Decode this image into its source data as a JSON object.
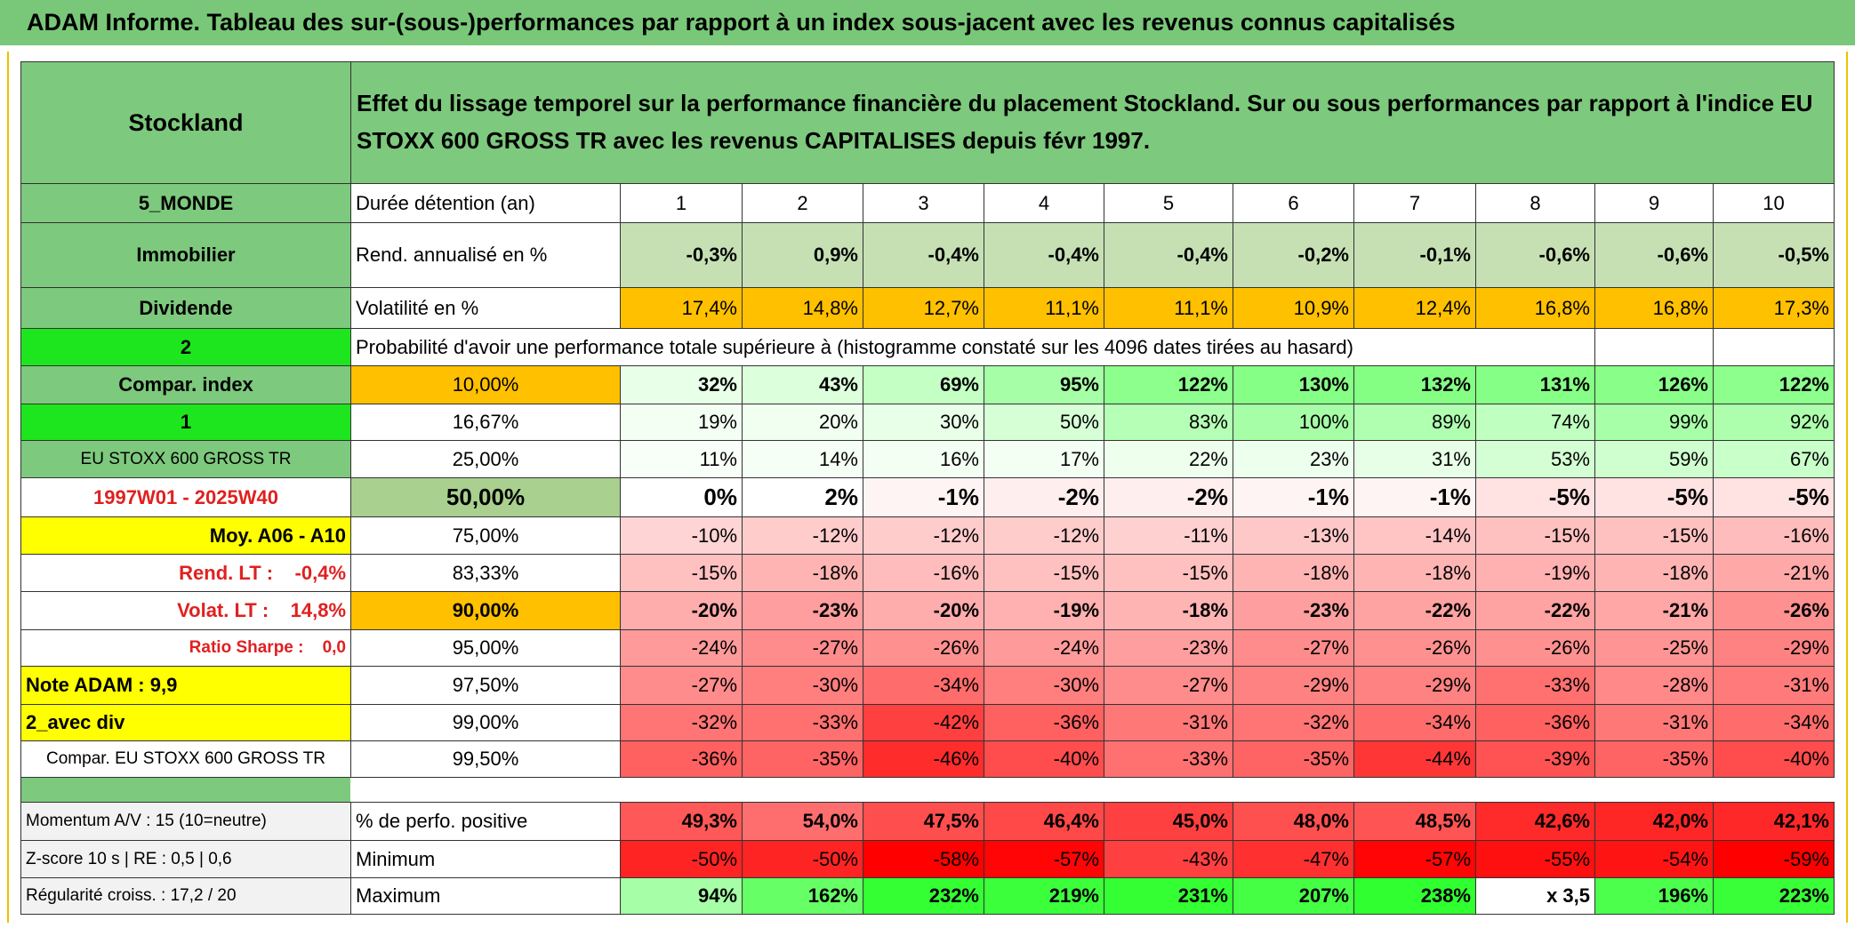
{
  "title": "ADAM Informe. Tableau des sur-(sous-)performances par rapport à un index sous-jacent avec les revenus connus capitalisés",
  "header": {
    "left": "Stockland",
    "text": "Effet du lissage temporel sur la performance financière du placement Stockland. Sur ou sous performances par rapport à l'indice EU STOXX 600 GROSS TR avec les revenus CAPITALISES depuis févr 1997."
  },
  "rows": [
    {
      "label": "5_MONDE",
      "label_bg": "#7dc97d",
      "label_color": "#000000",
      "label_align": "center",
      "label_bold": true,
      "name": "Durée détention (an)",
      "name_bg": "#ffffff",
      "name_align": "left",
      "name_bold": false,
      "cells": [
        "1",
        "2",
        "3",
        "4",
        "5",
        "6",
        "7",
        "8",
        "9",
        "10"
      ],
      "align": "center",
      "bold": false,
      "colors": [
        "#ffffff",
        "#ffffff",
        "#ffffff",
        "#ffffff",
        "#ffffff",
        "#ffffff",
        "#ffffff",
        "#ffffff",
        "#ffffff",
        "#ffffff"
      ]
    },
    {
      "label": "Immobilier",
      "label_bg": "#7dc97d",
      "label_color": "#000000",
      "label_align": "center",
      "label_bold": true,
      "name": "Rend. annualisé en %",
      "name_bg": "#ffffff",
      "name_align": "left",
      "name_bold": false,
      "cells": [
        "-0,3%",
        "0,9%",
        "-0,4%",
        "-0,4%",
        "-0,4%",
        "-0,2%",
        "-0,1%",
        "-0,6%",
        "-0,6%",
        "-0,5%"
      ],
      "align": "right",
      "bold": true,
      "colors": [
        "#c6e0b4",
        "#c6e0b4",
        "#c6e0b4",
        "#c6e0b4",
        "#c6e0b4",
        "#c6e0b4",
        "#c6e0b4",
        "#c6e0b4",
        "#c6e0b4",
        "#c6e0b4"
      ]
    },
    {
      "label": "Dividende",
      "label_bg": "#7dc97d",
      "label_color": "#000000",
      "label_align": "center",
      "label_bold": true,
      "name": "Volatilité en %",
      "name_bg": "#ffffff",
      "name_align": "left",
      "name_bold": false,
      "cells": [
        "17,4%",
        "14,8%",
        "12,7%",
        "11,1%",
        "11,1%",
        "10,9%",
        "12,4%",
        "16,8%",
        "16,8%",
        "17,3%"
      ],
      "align": "right",
      "bold": false,
      "colors": [
        "#ffc000",
        "#ffc000",
        "#ffc000",
        "#ffc000",
        "#ffc000",
        "#ffc000",
        "#ffc000",
        "#ffc000",
        "#ffc000",
        "#ffc000"
      ]
    },
    {
      "label": "2",
      "label_bg": "#1ee61e",
      "label_color": "#000000",
      "label_align": "center",
      "label_bold": true,
      "name": "Probabilité d'avoir une performance totale supérieure à (histogramme constaté sur les 4096 dates tirées au hasard)",
      "name_bg": "#ffffff",
      "name_align": "left",
      "name_bold": false
    },
    {
      "label": "Compar. index",
      "label_bg": "#7dc97d",
      "label_color": "#000000",
      "label_align": "center",
      "label_bold": true,
      "name": "10,00%",
      "name_bg": "#ffc000",
      "name_align": "center",
      "name_bold": false,
      "cells": [
        "32%",
        "43%",
        "69%",
        "95%",
        "122%",
        "130%",
        "132%",
        "131%",
        "126%",
        "122%"
      ],
      "align": "right",
      "bold": true,
      "colors": [
        "#e8ffe8",
        "#dcffdc",
        "#c4ffc4",
        "#a6ffa6",
        "#8cff8c",
        "#86ff86",
        "#84ff84",
        "#85ff85",
        "#89ff89",
        "#8cff8c"
      ]
    },
    {
      "label": "1",
      "label_bg": "#1ee61e",
      "label_color": "#000000",
      "label_align": "center",
      "label_bold": true,
      "name": "16,67%",
      "name_bg": "#ffffff",
      "name_align": "center",
      "name_bold": false,
      "cells": [
        "19%",
        "20%",
        "30%",
        "50%",
        "83%",
        "100%",
        "89%",
        "74%",
        "99%",
        "92%"
      ],
      "align": "right",
      "bold": false,
      "colors": [
        "#f2fff2",
        "#f1fff1",
        "#e8ffe8",
        "#d6ffd6",
        "#b6ffb6",
        "#a6ffa6",
        "#b0ffb0",
        "#bfffbf",
        "#a7ffa7",
        "#adffad"
      ]
    },
    {
      "label": "EU STOXX 600 GROSS TR",
      "label_bg": "#7dc97d",
      "label_color": "#000000",
      "label_align": "center",
      "label_bold": false,
      "name": "25,00%",
      "name_bg": "#ffffff",
      "name_align": "center",
      "name_bold": false,
      "cells": [
        "11%",
        "14%",
        "16%",
        "17%",
        "22%",
        "23%",
        "31%",
        "53%",
        "59%",
        "67%"
      ],
      "align": "right",
      "bold": false,
      "colors": [
        "#f8fff8",
        "#f5fff5",
        "#f3fff3",
        "#f2fff2",
        "#eeffee",
        "#edffed",
        "#e7ffe7",
        "#d4ffd4",
        "#cfffcf",
        "#c9ffc9"
      ]
    },
    {
      "label": "1997W01 - 2025W40",
      "label_bg": "#ffffff",
      "label_color": "#e02020",
      "label_align": "center",
      "label_bold": true,
      "name": "50,00%",
      "name_bg": "#a9d08e",
      "name_align": "center",
      "name_bold": true,
      "cells": [
        "0%",
        "2%",
        "-1%",
        "-2%",
        "-2%",
        "-1%",
        "-1%",
        "-5%",
        "-5%",
        "-5%"
      ],
      "align": "right",
      "bold": true,
      "colors": [
        "#ffffff",
        "#ffffff",
        "#fff4f4",
        "#ffeeee",
        "#ffeeee",
        "#fff4f4",
        "#fff4f4",
        "#ffe2e2",
        "#ffe2e2",
        "#ffe2e2"
      ]
    },
    {
      "label": "Moy. A06 - A10",
      "label_bg": "#ffff00",
      "label_color": "#000000",
      "label_align": "right",
      "label_bold": true,
      "name": "75,00%",
      "name_bg": "#ffffff",
      "name_align": "center",
      "name_bold": false,
      "cells": [
        "-10%",
        "-12%",
        "-12%",
        "-12%",
        "-11%",
        "-13%",
        "-14%",
        "-15%",
        "-15%",
        "-16%"
      ],
      "align": "right",
      "bold": false,
      "colors": [
        "#ffd4d4",
        "#ffcccc",
        "#ffcccc",
        "#ffcccc",
        "#ffd0d0",
        "#ffc8c8",
        "#ffc4c4",
        "#ffc0c0",
        "#ffc0c0",
        "#ffbcbc"
      ]
    },
    {
      "label": "Rend. LT :    -0,4%",
      "label_bg": "#ffffff",
      "label_color": "#e02020",
      "label_align": "right",
      "label_bold": true,
      "name": "83,33%",
      "name_bg": "#ffffff",
      "name_align": "center",
      "name_bold": false,
      "cells": [
        "-15%",
        "-18%",
        "-16%",
        "-15%",
        "-15%",
        "-18%",
        "-18%",
        "-19%",
        "-18%",
        "-21%"
      ],
      "align": "right",
      "bold": false,
      "colors": [
        "#ffc0c0",
        "#ffb4b4",
        "#ffbcbc",
        "#ffc0c0",
        "#ffc0c0",
        "#ffb4b4",
        "#ffb4b4",
        "#ffb0b0",
        "#ffb4b4",
        "#ffa8a8"
      ]
    },
    {
      "label": "Volat. LT :    14,8%",
      "label_bg": "#ffffff",
      "label_color": "#e02020",
      "label_align": "right",
      "label_bold": true,
      "name": "90,00%",
      "name_bg": "#ffc000",
      "name_align": "center",
      "name_bold": true,
      "cells": [
        "-20%",
        "-23%",
        "-20%",
        "-19%",
        "-18%",
        "-23%",
        "-22%",
        "-22%",
        "-21%",
        "-26%"
      ],
      "align": "right",
      "bold": true,
      "colors": [
        "#ffacac",
        "#ff9e9e",
        "#ffacac",
        "#ffb0b0",
        "#ffb4b4",
        "#ff9e9e",
        "#ffa2a2",
        "#ffa2a2",
        "#ffa6a6",
        "#ff9090"
      ]
    },
    {
      "label": "Ratio Sharpe :    0,0",
      "label_bg": "#ffffff",
      "label_color": "#e02020",
      "label_align": "right",
      "label_bold": true,
      "name": "95,00%",
      "name_bg": "#ffffff",
      "name_align": "center",
      "name_bold": false,
      "cells": [
        "-24%",
        "-27%",
        "-26%",
        "-24%",
        "-23%",
        "-27%",
        "-26%",
        "-26%",
        "-25%",
        "-29%"
      ],
      "align": "right",
      "bold": false,
      "colors": [
        "#ff9a9a",
        "#ff8c8c",
        "#ff9090",
        "#ff9a9a",
        "#ff9e9e",
        "#ff8c8c",
        "#ff9090",
        "#ff9090",
        "#ff9494",
        "#ff8282"
      ]
    },
    {
      "label": "Note ADAM : 9,9",
      "label_bg": "#ffff00",
      "label_color": "#000000",
      "label_align": "left",
      "label_bold": true,
      "name": "97,50%",
      "name_bg": "#ffffff",
      "name_align": "center",
      "name_bold": false,
      "cells": [
        "-27%",
        "-30%",
        "-34%",
        "-30%",
        "-27%",
        "-29%",
        "-29%",
        "-33%",
        "-28%",
        "-31%"
      ],
      "align": "right",
      "bold": false,
      "colors": [
        "#ff8c8c",
        "#ff7e7e",
        "#ff6c6c",
        "#ff7e7e",
        "#ff8c8c",
        "#ff8282",
        "#ff8282",
        "#ff7070",
        "#ff8888",
        "#ff7a7a"
      ]
    },
    {
      "label": "2_avec div",
      "label_bg": "#ffff00",
      "label_color": "#000000",
      "label_align": "left",
      "label_bold": true,
      "name": "99,00%",
      "name_bg": "#ffffff",
      "name_align": "center",
      "name_bold": false,
      "cells": [
        "-32%",
        "-33%",
        "-42%",
        "-36%",
        "-31%",
        "-32%",
        "-34%",
        "-36%",
        "-31%",
        "-34%"
      ],
      "align": "right",
      "bold": false,
      "colors": [
        "#ff7474",
        "#ff7070",
        "#ff4040",
        "#ff6060",
        "#ff7878",
        "#ff7474",
        "#ff6c6c",
        "#ff6060",
        "#ff7878",
        "#ff6c6c"
      ]
    },
    {
      "label": "Compar. EU STOXX 600 GROSS TR",
      "label_bg": "#ffffff",
      "label_color": "#000000",
      "label_align": "center",
      "label_bold": false,
      "name": "99,50%",
      "name_bg": "#ffffff",
      "name_align": "center",
      "name_bold": false,
      "cells": [
        "-36%",
        "-35%",
        "-46%",
        "-40%",
        "-33%",
        "-35%",
        "-44%",
        "-39%",
        "-35%",
        "-40%"
      ],
      "align": "right",
      "bold": false,
      "colors": [
        "#ff6060",
        "#ff6464",
        "#ff2c2c",
        "#ff4c4c",
        "#ff7070",
        "#ff6464",
        "#ff3636",
        "#ff5252",
        "#ff6464",
        "#ff4c4c"
      ]
    },
    {
      "label": "Momentum A/V : 15 (10=neutre)",
      "label_bg": "#f2f2f2",
      "label_color": "#000000",
      "label_align": "left",
      "label_bold": false,
      "name": "% de perfo. positive",
      "name_bg": "#ffffff",
      "name_align": "left",
      "name_bold": false,
      "cells": [
        "49,3%",
        "54,0%",
        "47,5%",
        "46,4%",
        "45,0%",
        "48,0%",
        "48,5%",
        "42,6%",
        "42,0%",
        "42,1%"
      ],
      "align": "right",
      "bold": true,
      "colors": [
        "#ff5858",
        "#ff6e6e",
        "#ff4e4e",
        "#ff4848",
        "#ff4040",
        "#ff5050",
        "#ff5454",
        "#ff2a2a",
        "#ff2626",
        "#ff2828"
      ]
    },
    {
      "label": "Z-score 10 s | RE : 0,5 | 0,6",
      "label_bg": "#f2f2f2",
      "label_color": "#000000",
      "label_align": "left",
      "label_bold": false,
      "name": "Minimum",
      "name_bg": "#ffffff",
      "name_align": "left",
      "name_bold": false,
      "cells": [
        "-50%",
        "-50%",
        "-58%",
        "-57%",
        "-43%",
        "-47%",
        "-57%",
        "-55%",
        "-54%",
        "-59%"
      ],
      "align": "right",
      "bold": false,
      "colors": [
        "#ff2424",
        "#ff2424",
        "#ff0000",
        "#ff0505",
        "#ff4040",
        "#ff3030",
        "#ff0505",
        "#ff1010",
        "#ff1414",
        "#ff0000"
      ]
    },
    {
      "label": "Régularité croiss. : 17,2 / 20",
      "label_bg": "#f2f2f2",
      "label_color": "#000000",
      "label_align": "left",
      "label_bold": false,
      "name": "Maximum",
      "name_bg": "#ffffff",
      "name_align": "left",
      "name_bold": false,
      "cells": [
        "94%",
        "162%",
        "232%",
        "219%",
        "231%",
        "207%",
        "238%",
        "x 3,5",
        "196%",
        "223%"
      ],
      "align": "right",
      "bold": true,
      "colors": [
        "#a6ffa6",
        "#66ff66",
        "#33ff33",
        "#3cff3c",
        "#33ff33",
        "#44ff44",
        "#30ff30",
        "#ffffff",
        "#4cff4c",
        "#38ff38"
      ]
    }
  ]
}
